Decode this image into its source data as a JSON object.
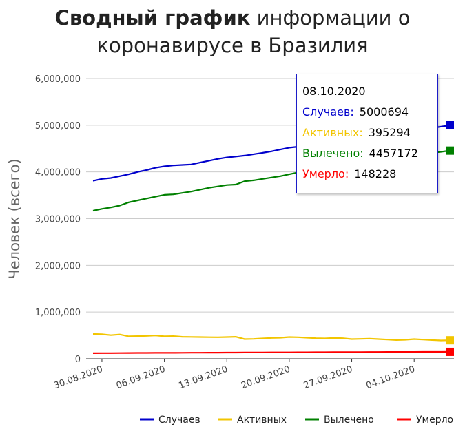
{
  "title": {
    "bold": "Сводный график",
    "rest": " информации о",
    "line2": "коронавирусе в Бразилия"
  },
  "tooltip": {
    "date": "08.10.2020",
    "rows": [
      {
        "label": "Случаев:",
        "value": "5000694",
        "color": "#0000cc"
      },
      {
        "label": "Активных:",
        "value": "395294",
        "color": "#f2c500"
      },
      {
        "label": "Вылечено:",
        "value": "4457172",
        "color": "#008000"
      },
      {
        "label": "Умерло:",
        "value": "148228",
        "color": "#ff0000"
      }
    ]
  },
  "chart_data": {
    "type": "line",
    "title": "Сводный график информации о коронавирусе в Бразилия",
    "ylabel": "Человек (всего)",
    "xlabel": "",
    "ylim": [
      0,
      6000000
    ],
    "yticks": [
      "0",
      "1,000,000",
      "2,000,000",
      "3,000,000",
      "4,000,000",
      "5,000,000",
      "6,000,000"
    ],
    "xticks": [
      "30.08.2020",
      "06.09.2020",
      "13.09.2020",
      "20.09.2020",
      "27.09.2020",
      "04.10.2020"
    ],
    "x": [
      "29.08.2020",
      "30.08.2020",
      "31.08.2020",
      "01.09.2020",
      "02.09.2020",
      "03.09.2020",
      "04.09.2020",
      "05.09.2020",
      "06.09.2020",
      "07.09.2020",
      "08.09.2020",
      "09.09.2020",
      "10.09.2020",
      "11.09.2020",
      "12.09.2020",
      "13.09.2020",
      "14.09.2020",
      "15.09.2020",
      "16.09.2020",
      "17.09.2020",
      "18.09.2020",
      "19.09.2020",
      "20.09.2020",
      "21.09.2020",
      "22.09.2020",
      "23.09.2020",
      "24.09.2020",
      "25.09.2020",
      "26.09.2020",
      "27.09.2020",
      "28.09.2020",
      "29.09.2020",
      "30.09.2020",
      "01.10.2020",
      "02.10.2020",
      "03.10.2020",
      "04.10.2020",
      "05.10.2020",
      "06.10.2020",
      "07.10.2020",
      "08.10.2020"
    ],
    "series": [
      {
        "name": "Случаев",
        "color": "#0000cc",
        "values": [
          3810000,
          3850000,
          3870000,
          3910000,
          3950000,
          4000000,
          4040000,
          4090000,
          4120000,
          4140000,
          4150000,
          4160000,
          4200000,
          4240000,
          4280000,
          4310000,
          4330000,
          4350000,
          4380000,
          4410000,
          4440000,
          4480000,
          4520000,
          4540000,
          4560000,
          4590000,
          4620000,
          4660000,
          4690000,
          4720000,
          4730000,
          4760000,
          4780000,
          4810000,
          4850000,
          4880000,
          4900000,
          4920000,
          4940000,
          4970000,
          5000694
        ]
      },
      {
        "name": "Активных",
        "color": "#f2c500",
        "values": [
          530000,
          525000,
          505000,
          520000,
          480000,
          485000,
          490000,
          500000,
          480000,
          485000,
          470000,
          468000,
          465000,
          462000,
          460000,
          465000,
          470000,
          420000,
          425000,
          435000,
          445000,
          450000,
          465000,
          460000,
          450000,
          440000,
          435000,
          445000,
          440000,
          420000,
          425000,
          430000,
          420000,
          410000,
          400000,
          405000,
          420000,
          410000,
          400000,
          390000,
          395294
        ]
      },
      {
        "name": "Вылечено",
        "color": "#008000",
        "values": [
          3170000,
          3210000,
          3240000,
          3280000,
          3350000,
          3390000,
          3430000,
          3470000,
          3510000,
          3520000,
          3550000,
          3580000,
          3620000,
          3660000,
          3690000,
          3720000,
          3730000,
          3800000,
          3820000,
          3850000,
          3880000,
          3910000,
          3950000,
          3990000,
          4020000,
          4050000,
          4080000,
          4120000,
          4150000,
          4180000,
          4200000,
          4230000,
          4260000,
          4290000,
          4320000,
          4350000,
          4370000,
          4390000,
          4410000,
          4430000,
          4457172
        ]
      },
      {
        "name": "Умерло",
        "color": "#ff0000",
        "values": [
          119504,
          120262,
          121381,
          122596,
          123780,
          124729,
          125502,
          126650,
          126960,
          127464,
          128539,
          129522,
          130396,
          131210,
          131625,
          132006,
          133119,
          134106,
          134935,
          135793,
          136532,
          136895,
          137272,
          138105,
          139065,
          139808,
          140537,
          141406,
          141741,
          142058,
          142921,
          143952,
          144680,
          145388,
          146011,
          146352,
          146675,
          147494,
          147571,
          147907,
          148228
        ]
      }
    ],
    "grid": true,
    "legend": "bottom"
  }
}
